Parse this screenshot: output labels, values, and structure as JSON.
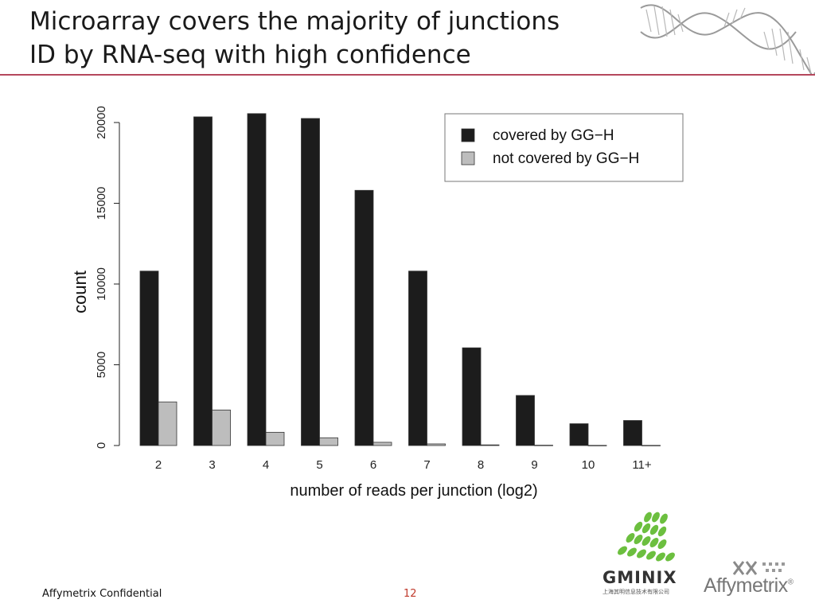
{
  "slide": {
    "title_line1": "Microarray covers the majority of junctions",
    "title_line2": "ID by RNA-seq with high confidence",
    "footer_text": "Affymetrix Confidential",
    "page_number": "12",
    "accent_color": "#b5475c"
  },
  "logos": {
    "gminix_name": "GMINIX",
    "gminix_subtitle": "上海其明信息技术有限公司",
    "affymetrix_name": "Affymetrix",
    "affymetrix_mark": "®"
  },
  "chart_data": {
    "type": "bar",
    "xlabel": "number of reads per junction (log2)",
    "ylabel": "count",
    "ylim": [
      0,
      20000
    ],
    "yticks": [
      0,
      5000,
      10000,
      15000,
      20000
    ],
    "categories": [
      "2",
      "3",
      "4",
      "5",
      "6",
      "7",
      "8",
      "9",
      "10",
      "11+"
    ],
    "series": [
      {
        "name": "covered by GG−H",
        "color": "#1c1c1c",
        "values": [
          10800,
          20350,
          20550,
          20250,
          15800,
          10800,
          6050,
          3100,
          1350,
          1550
        ]
      },
      {
        "name": "not covered by GG−H",
        "color": "#bdbdbd",
        "values": [
          2700,
          2200,
          820,
          480,
          200,
          100,
          40,
          20,
          10,
          10
        ]
      }
    ],
    "legend_position": "top-right",
    "grid": false
  }
}
